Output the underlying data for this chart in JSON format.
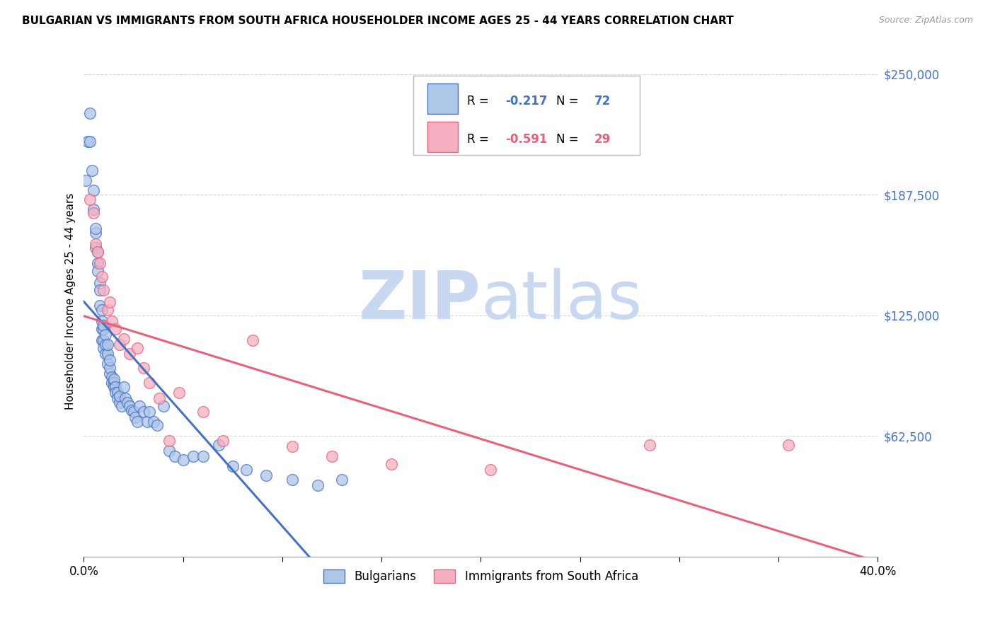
{
  "title": "BULGARIAN VS IMMIGRANTS FROM SOUTH AFRICA HOUSEHOLDER INCOME AGES 25 - 44 YEARS CORRELATION CHART",
  "source": "Source: ZipAtlas.com",
  "ylabel": "Householder Income Ages 25 - 44 years",
  "bg_color": "#ffffff",
  "legend_labels": [
    "Bulgarians",
    "Immigrants from South Africa"
  ],
  "blue_R": -0.217,
  "blue_N": 72,
  "pink_R": -0.591,
  "pink_N": 29,
  "blue_scatter_x": [
    0.001,
    0.002,
    0.003,
    0.003,
    0.004,
    0.005,
    0.005,
    0.006,
    0.006,
    0.006,
    0.007,
    0.007,
    0.007,
    0.008,
    0.008,
    0.008,
    0.009,
    0.009,
    0.009,
    0.009,
    0.01,
    0.01,
    0.01,
    0.01,
    0.011,
    0.011,
    0.011,
    0.012,
    0.012,
    0.012,
    0.013,
    0.013,
    0.013,
    0.014,
    0.014,
    0.015,
    0.015,
    0.015,
    0.016,
    0.016,
    0.017,
    0.017,
    0.018,
    0.018,
    0.019,
    0.02,
    0.021,
    0.022,
    0.023,
    0.024,
    0.025,
    0.026,
    0.027,
    0.028,
    0.03,
    0.032,
    0.033,
    0.035,
    0.037,
    0.04,
    0.043,
    0.046,
    0.05,
    0.055,
    0.06,
    0.068,
    0.075,
    0.082,
    0.092,
    0.105,
    0.118,
    0.13
  ],
  "blue_scatter_y": [
    195000,
    215000,
    230000,
    215000,
    200000,
    190000,
    180000,
    168000,
    160000,
    170000,
    152000,
    148000,
    158000,
    142000,
    138000,
    130000,
    128000,
    122000,
    118000,
    112000,
    118000,
    112000,
    120000,
    108000,
    105000,
    110000,
    115000,
    100000,
    105000,
    110000,
    95000,
    98000,
    102000,
    93000,
    90000,
    90000,
    88000,
    92000,
    88000,
    85000,
    85000,
    82000,
    80000,
    83000,
    78000,
    88000,
    82000,
    80000,
    78000,
    76000,
    75000,
    72000,
    70000,
    78000,
    75000,
    70000,
    75000,
    70000,
    68000,
    78000,
    55000,
    52000,
    50000,
    52000,
    52000,
    58000,
    47000,
    45000,
    42000,
    40000,
    37000,
    40000
  ],
  "pink_scatter_x": [
    0.003,
    0.005,
    0.006,
    0.007,
    0.008,
    0.009,
    0.01,
    0.012,
    0.013,
    0.014,
    0.016,
    0.018,
    0.02,
    0.023,
    0.027,
    0.03,
    0.033,
    0.038,
    0.043,
    0.048,
    0.06,
    0.07,
    0.085,
    0.105,
    0.125,
    0.155,
    0.205,
    0.285,
    0.355
  ],
  "pink_scatter_y": [
    185000,
    178000,
    162000,
    158000,
    152000,
    145000,
    138000,
    128000,
    132000,
    122000,
    118000,
    110000,
    113000,
    105000,
    108000,
    98000,
    90000,
    82000,
    60000,
    85000,
    75000,
    60000,
    112000,
    57000,
    52000,
    48000,
    45000,
    58000,
    58000
  ],
  "xmin": 0.0,
  "xmax": 0.4,
  "ymin": 0,
  "ymax": 265000,
  "blue_line_color": "#4472c4",
  "pink_line_color": "#e8607a",
  "blue_scatter_color": "#aec6e8",
  "pink_scatter_color": "#f4afc0",
  "grid_color": "#cccccc",
  "watermark_zip_color": "#c8d8f0",
  "watermark_atlas_color": "#c8d8f0",
  "ytick_vals": [
    62500,
    125000,
    187500,
    250000
  ],
  "ytick_labels": [
    "$62,500",
    "$125,000",
    "$187,500",
    "$250,000"
  ],
  "xtick_positions": [
    0.0,
    0.05,
    0.1,
    0.15,
    0.2,
    0.25,
    0.3,
    0.35,
    0.4
  ],
  "xtick_labels": [
    "0.0%",
    "",
    "",
    "",
    "",
    "",
    "",
    "",
    "40.0%"
  ]
}
